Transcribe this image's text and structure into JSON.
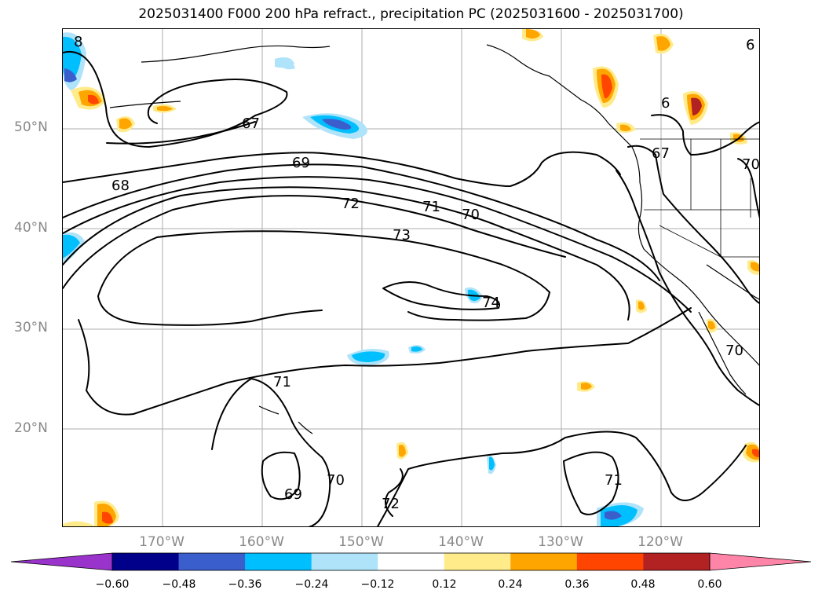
{
  "title": "2025031400 F000 200 hPa refract., precipitation PC (2025031600 - 2025031700)",
  "axes": {
    "lat_labels": [
      "50°N",
      "40°N",
      "30°N",
      "20°N"
    ],
    "lon_labels": [
      "170°W",
      "160°W",
      "150°W",
      "140°W",
      "130°W",
      "120°W"
    ]
  },
  "contour_labels": [
    "67",
    "68",
    "69",
    "72",
    "71",
    "70",
    "73",
    "74",
    "71",
    "70",
    "69",
    "72",
    "71",
    "67",
    "70",
    "70",
    "6",
    "8",
    "6"
  ],
  "colorbar": {
    "ticks": [
      "−0.60",
      "−0.48",
      "−0.36",
      "−0.24",
      "−0.12",
      "0.12",
      "0.24",
      "0.36",
      "0.48",
      "0.60"
    ],
    "colors": [
      "#9933cc",
      "#00008b",
      "#3a5fcd",
      "#00bfff",
      "#aee3fa",
      "#ffffff",
      "#ffeb8a",
      "#ffa500",
      "#ff4500",
      "#b22222",
      "#ff85a8"
    ]
  },
  "colors": {
    "contour": "#000000",
    "grid": "#999999",
    "label_gray": "#888888"
  }
}
